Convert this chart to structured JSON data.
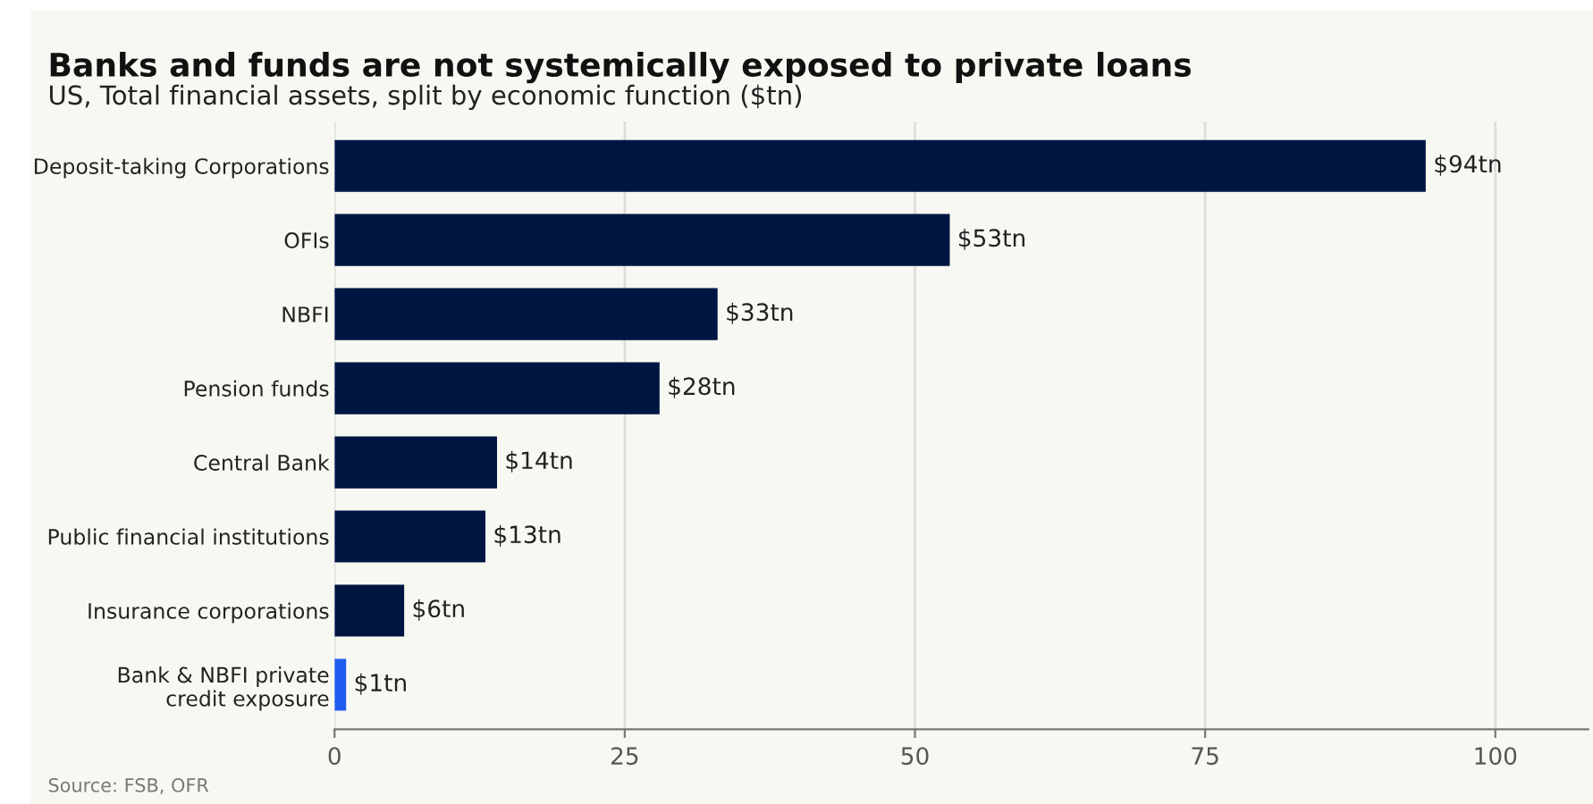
{
  "chart_data": {
    "type": "bar",
    "orientation": "horizontal",
    "title": "Banks and funds are not systemically exposed to private loans",
    "subtitle": "US, Total financial assets, split by economic function ($tn)",
    "categories": [
      "Deposit-taking Corporations",
      "OFIs",
      "NBFI",
      "Pension funds",
      "Central Bank",
      "Public financial institutions",
      "Insurance corporations",
      "Bank & NBFI private\ncredit exposure"
    ],
    "values": [
      94,
      53,
      33,
      28,
      14,
      13,
      6,
      1
    ],
    "colors": [
      "#001642",
      "#001642",
      "#001642",
      "#001642",
      "#001642",
      "#001642",
      "#001642",
      "#1f5cf0"
    ],
    "value_labels": [
      "$94tn",
      "$53tn",
      "$33tn",
      "$28tn",
      "$14tn",
      "$13tn",
      "$6tn",
      "$1tn"
    ],
    "xlim": [
      0,
      108
    ],
    "xticks": [
      0,
      25,
      50,
      75,
      100
    ],
    "grid": "x",
    "annotations": [
      "Source: FSB, OFR"
    ]
  }
}
